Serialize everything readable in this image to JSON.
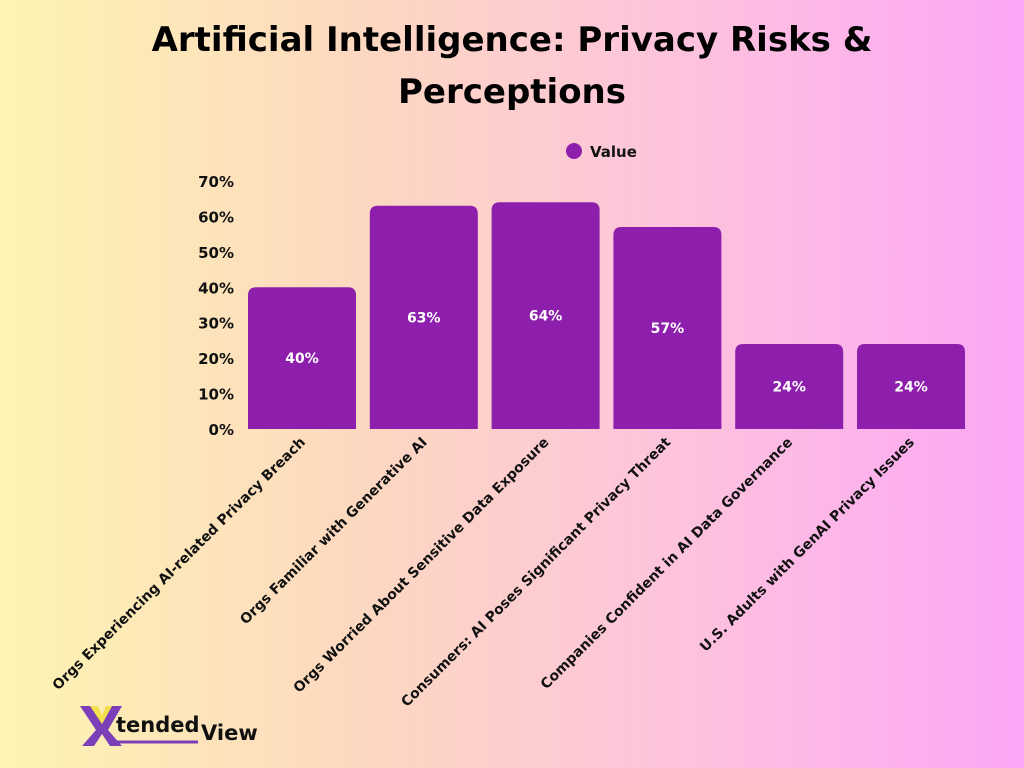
{
  "chart_data": {
    "type": "bar",
    "title_lines": [
      "Artificial Intelligence: Privacy Risks &",
      "Perceptions"
    ],
    "legend": {
      "label": "Value",
      "placement": "top"
    },
    "categories": [
      "Orgs Experiencing AI-related Privacy Breach",
      "Orgs Familiar with Generative AI",
      "Orgs Worried About Sensitive Data Exposure",
      "Consumers: AI Poses Significant Privacy Threat",
      "Companies Confident in AI Data Governance",
      "U.S. Adults with GenAI Privacy Issues"
    ],
    "series": [
      {
        "name": "Value",
        "values": [
          40,
          63,
          64,
          57,
          24,
          24
        ],
        "color": "#8e1fad"
      }
    ],
    "data_labels": [
      "40%",
      "63%",
      "64%",
      "57%",
      "24%",
      "24%"
    ],
    "yticks": [
      "0%",
      "10%",
      "20%",
      "30%",
      "40%",
      "50%",
      "60%",
      "70%"
    ],
    "ylim": [
      0,
      70
    ],
    "grid": false
  },
  "logo": {
    "text_main": "Xtended",
    "text_sub": "View"
  }
}
